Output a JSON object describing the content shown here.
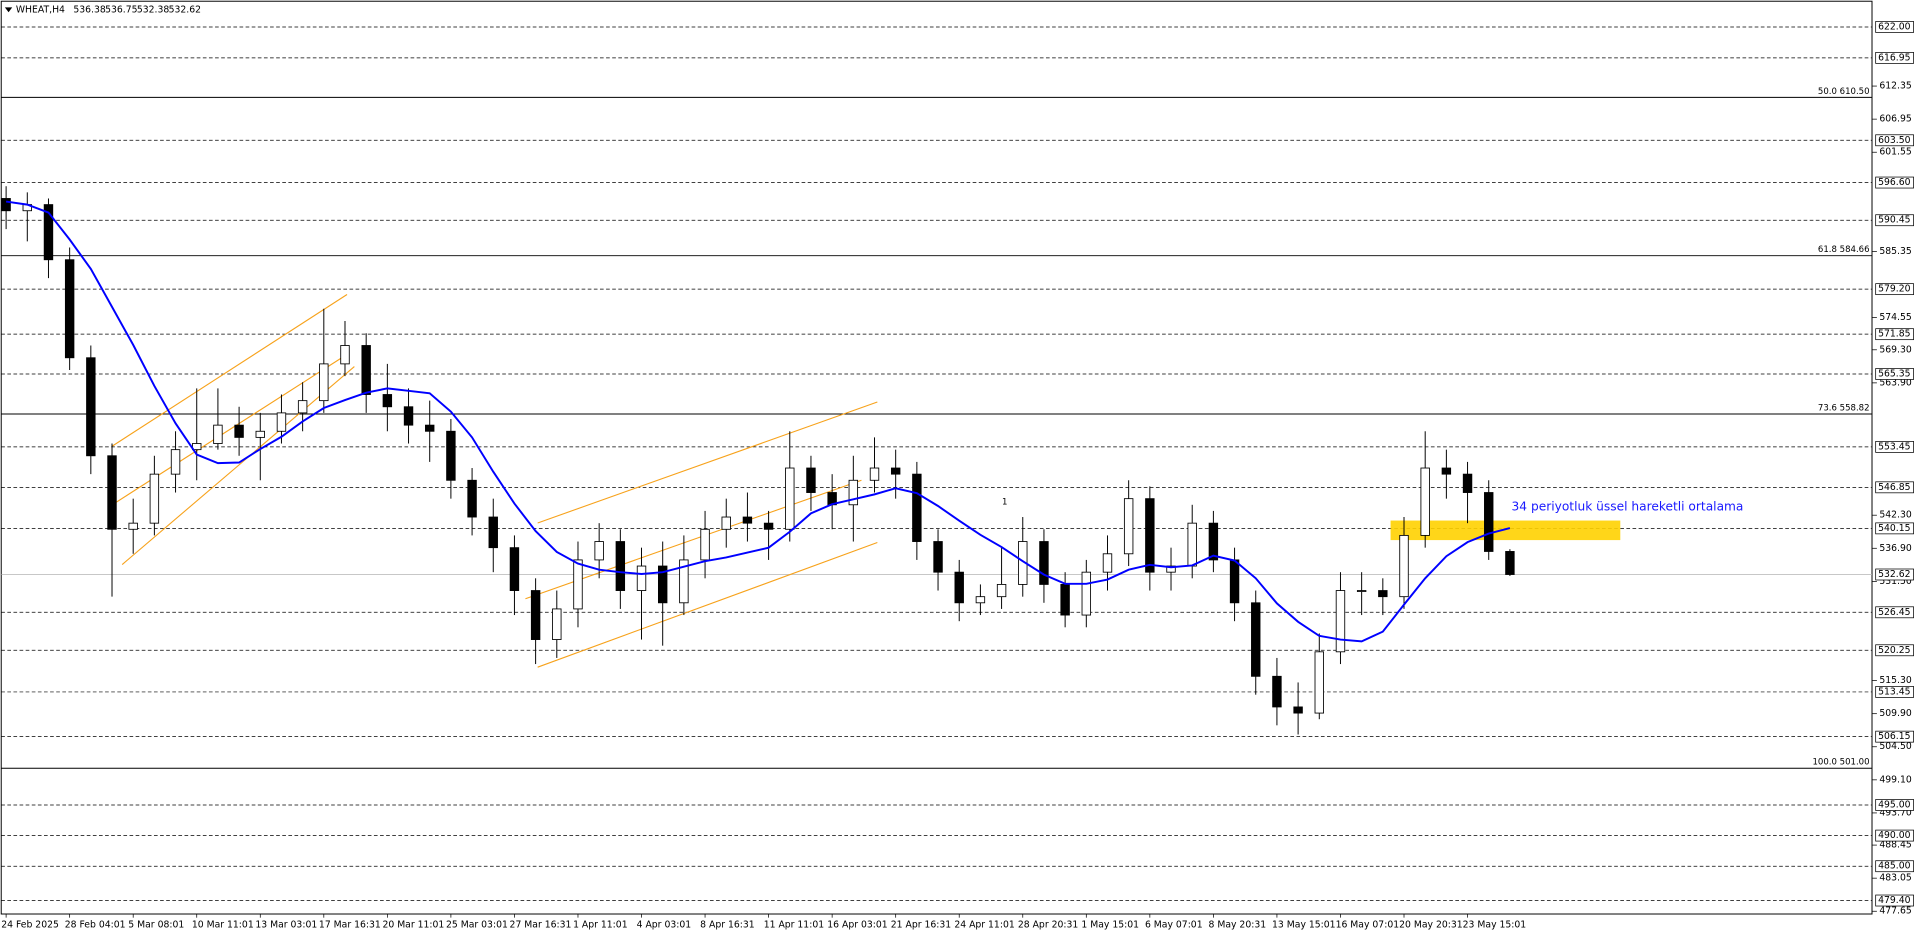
{
  "chart_data": {
    "type": "candlestick",
    "symbol": "WHEAT,H4",
    "categories": [
      "24 Feb 2025",
      null,
      null,
      "28 Feb 04:01",
      null,
      null,
      "5 Mar 08:01",
      null,
      null,
      "10 Mar 11:01",
      null,
      null,
      "13 Mar 03:01",
      null,
      null,
      "17 Mar 16:31",
      null,
      null,
      "20 Mar 11:01",
      null,
      null,
      "25 Mar 03:01",
      null,
      null,
      "27 Mar 16:31",
      null,
      null,
      "1 Apr 11:01",
      null,
      null,
      "4 Apr 03:01",
      null,
      null,
      "8 Apr 16:31",
      null,
      null,
      "11 Apr 11:01",
      null,
      null,
      "16 Apr 03:01",
      null,
      null,
      "21 Apr 16:31",
      null,
      null,
      "24 Apr 11:01",
      null,
      null,
      "28 Apr 20:31",
      null,
      null,
      "1 May 15:01",
      null,
      null,
      "6 May 07:01",
      null,
      null,
      "8 May 20:31",
      null,
      null,
      "13 May 15:01",
      null,
      null,
      "16 May 07:01",
      null,
      null,
      "20 May 20:31",
      null,
      null,
      "23 May 15:01",
      null,
      null
    ],
    "open": [
      594,
      592,
      593,
      584,
      568,
      552,
      540,
      541,
      549,
      553,
      554,
      557,
      555,
      556,
      559,
      561,
      567,
      570,
      562,
      560,
      557,
      556,
      548,
      542,
      537,
      530,
      522,
      527,
      535,
      538,
      530,
      534,
      528,
      535,
      540,
      542,
      541,
      540,
      550,
      546,
      544,
      548,
      550,
      549,
      538,
      533,
      528,
      529,
      531,
      538,
      531,
      526,
      533,
      536,
      545,
      533,
      534,
      541,
      535,
      528,
      516,
      511,
      510,
      520,
      530,
      530,
      529,
      539,
      550,
      549,
      546,
      536.38
    ],
    "high": [
      596,
      595,
      594,
      586,
      570,
      554,
      545,
      552,
      556,
      563,
      563,
      560,
      559,
      562,
      564,
      576,
      574,
      572,
      567,
      563,
      561,
      558,
      550,
      545,
      539,
      532,
      530,
      538,
      541,
      540,
      537,
      538,
      539,
      543,
      545,
      546,
      543,
      556,
      552,
      549,
      552,
      555,
      553,
      551,
      540,
      535,
      531,
      537,
      542,
      540,
      533,
      535,
      539,
      548,
      547,
      537,
      544,
      543,
      537,
      530,
      519,
      515,
      523,
      533,
      533,
      532,
      542,
      556,
      553,
      551,
      548,
      536.75
    ],
    "low": [
      589,
      587,
      581,
      566,
      549,
      529,
      536,
      539,
      546,
      548,
      553,
      552,
      548,
      554,
      556,
      559,
      565,
      559,
      556,
      554,
      551,
      545,
      539,
      533,
      526,
      518,
      519,
      524,
      532,
      527,
      522,
      521,
      526,
      532,
      537,
      538,
      535,
      538,
      543,
      540,
      538,
      546,
      545,
      535,
      530,
      525,
      526,
      527,
      529,
      528,
      524,
      524,
      530,
      534,
      530,
      530,
      532,
      533,
      525,
      513,
      508,
      506.5,
      509,
      518,
      526,
      526,
      527,
      537,
      545,
      541,
      535,
      532.38
    ],
    "close": [
      592,
      593,
      584,
      568,
      552,
      540,
      541,
      549,
      553,
      554,
      557,
      555,
      556,
      559,
      561,
      567,
      570,
      562,
      560,
      557,
      556,
      548,
      542,
      537,
      530,
      522,
      527,
      535,
      538,
      530,
      534,
      528,
      535,
      540,
      542,
      541,
      540,
      550,
      546,
      544,
      548,
      550,
      549,
      538,
      533,
      528,
      529,
      531,
      538,
      531,
      526,
      533,
      536,
      545,
      533,
      534,
      541,
      535,
      528,
      516,
      511,
      510,
      520,
      530,
      530,
      529,
      539,
      550,
      549,
      546,
      536.38,
      532.62
    ],
    "ema": {
      "color": "#0000ff",
      "values": [
        593.5,
        593,
        591.7,
        587.3,
        582.5,
        576.3,
        570.1,
        563.4,
        557.3,
        552.2,
        550.8,
        550.9,
        553.1,
        555.1,
        557.6,
        559.8,
        561.1,
        562.3,
        563,
        562.6,
        562.2,
        559.2,
        555,
        549.4,
        544.2,
        539.7,
        536.3,
        534.4,
        533.4,
        533,
        532.7,
        533,
        533.9,
        534.8,
        535.4,
        536.2,
        537,
        539.6,
        542.6,
        544.1,
        544.9,
        545.7,
        546.7,
        545.9,
        543.8,
        541.4,
        539.1,
        537.1,
        534.8,
        532.6,
        531.1,
        531.1,
        531.8,
        533.4,
        534.2,
        533.8,
        534.1,
        535.7,
        534.9,
        532,
        527.9,
        524.9,
        522.6,
        522,
        521.7,
        523.3,
        527.7,
        532,
        535.6,
        537.9,
        539.3,
        540.2
      ]
    },
    "annotation": "34 periyotluk üssel hareketli ortalama",
    "marker_text": "1",
    "levels": {
      "values": [
        622,
        616.95,
        603.5,
        596.6,
        590.45,
        579.2,
        571.85,
        565.35,
        553.45,
        546.85,
        540.15,
        526.45,
        520.25,
        513.45,
        506.15,
        495,
        490,
        485,
        479.4
      ],
      "value_labels": [
        "622.00",
        "616.95",
        "603.50",
        "596.60",
        "590.45",
        "579.20",
        "571.85",
        "565.35",
        "553.45",
        "546.85",
        "540.15",
        "526.45",
        "520.25",
        "513.45",
        "506.15",
        "495.00",
        "490.00",
        "485.00",
        "479.40"
      ]
    },
    "fib_levels": {
      "values": [
        610.5,
        584.66,
        558.82,
        501
      ],
      "value_labels": [
        "50.0 610.50",
        "61.8 584.66",
        "73.6 558.82",
        "100.0 501.00"
      ]
    },
    "ylim": [
      477.2,
      626.0
    ],
    "yticks": [
      612.35,
      606.95,
      601.55,
      585.35,
      574.55,
      {
        "value": 569.3,
        "label": "569.30"
      },
      {
        "value": 563.9,
        "label": "563.90"
      },
      {
        "value": 542.3,
        "label": "542.30"
      },
      {
        "value": 536.9,
        "label": "536.90"
      },
      {
        "value": 531.5,
        "label": "531.50"
      },
      {
        "value": 515.3,
        "label": "515.30"
      },
      {
        "value": 509.9,
        "label": "509.90"
      },
      {
        "value": 504.5,
        "label": "504.50"
      },
      {
        "value": 499.1,
        "label": "499.10"
      },
      {
        "value": 493.7,
        "label": "493.70"
      },
      488.45,
      483.05,
      477.65
    ],
    "up_color": "#ffffff",
    "down_color": "#000000"
  }
}
